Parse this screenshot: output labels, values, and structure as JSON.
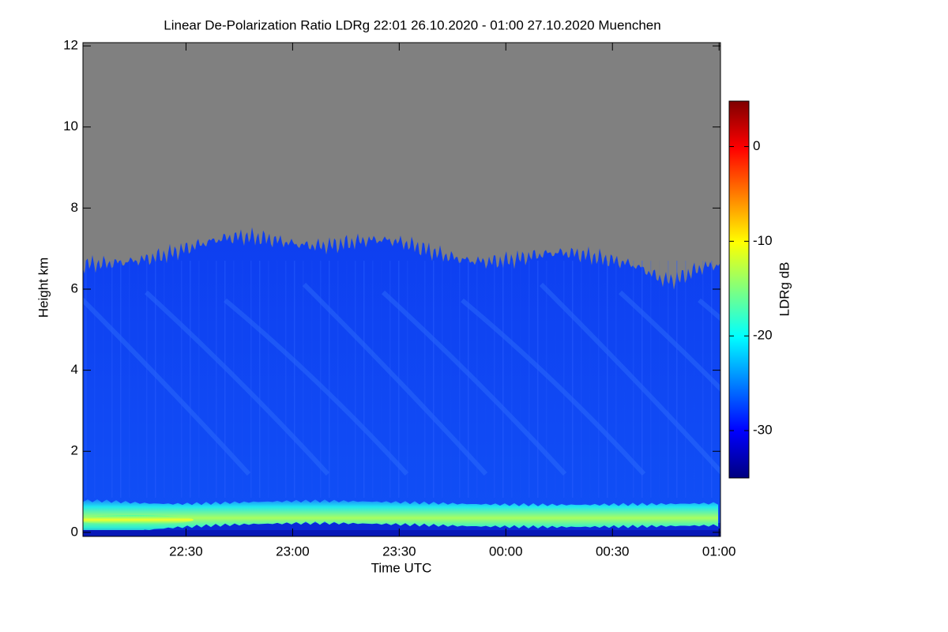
{
  "chart_data": {
    "type": "heatmap",
    "title": "Linear De-Polarization Ratio LDRg   22:01 26.10.2020 - 01:00 27.10.2020 Muenchen",
    "x_label": "Time UTC",
    "y_label": "Height km",
    "colorbar_label": "LDRg dB",
    "xlim": [
      1,
      180.4
    ],
    "xticks": [
      {
        "value": 30,
        "label": "22:30"
      },
      {
        "value": 60,
        "label": "23:00"
      },
      {
        "value": 90,
        "label": "23:30"
      },
      {
        "value": 120,
        "label": "00:00"
      },
      {
        "value": 150,
        "label": "00:30"
      },
      {
        "value": 180,
        "label": "01:00"
      }
    ],
    "ylim": [
      -0.1,
      12.08
    ],
    "yticks": [
      0,
      2,
      4,
      6,
      8,
      10,
      12
    ],
    "clim": [
      -35,
      4.8
    ],
    "cticks": [
      -30,
      -20,
      -10,
      0
    ],
    "colorscale": [
      "#00007f",
      "#0000ff",
      "#007fff",
      "#00ffff",
      "#7fff7f",
      "#ffff00",
      "#ff7f00",
      "#ff0000",
      "#7f0000"
    ],
    "missing_color": "#808080"
  }
}
